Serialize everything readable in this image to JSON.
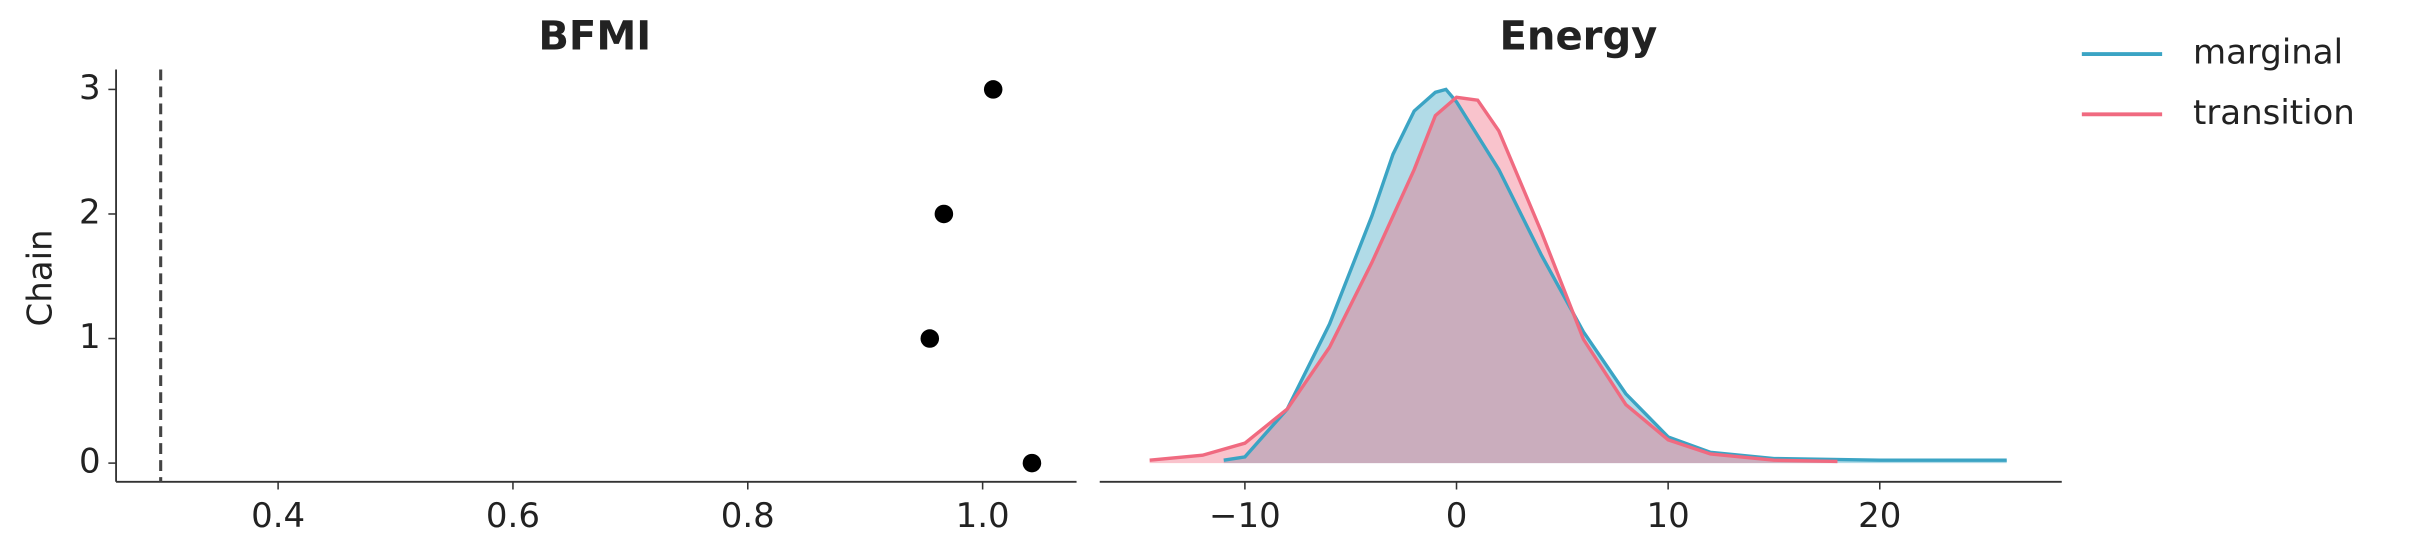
{
  "chart_data": [
    {
      "type": "scatter",
      "title": "BFMI",
      "y_label": "Chain",
      "x": [
        1.042,
        0.955,
        0.967,
        1.009
      ],
      "values": [
        0,
        1,
        2,
        3
      ],
      "color": "#000000",
      "vline": 0.3,
      "vline_color": "#444444",
      "xlim": [
        0.262,
        1.08
      ],
      "ylim": [
        -0.15,
        3.16
      ],
      "xticks": [
        0.4,
        0.6,
        0.8,
        {
          "value": 1,
          "label": "1.0"
        }
      ],
      "yticks": [
        0,
        1,
        2,
        3
      ]
    },
    {
      "type": "density",
      "title": "Energy",
      "legend": "outside-upper-right",
      "series": [
        {
          "name": "marginal",
          "color": "#3ba4c4",
          "x": [
            -11,
            -10,
            -8,
            -6,
            -4,
            -3,
            -2,
            -1,
            -0.5,
            0,
            2,
            4,
            6,
            8,
            10,
            12,
            15,
            20,
            26
          ],
          "values": [
            0.0007,
            0.0015,
            0.013,
            0.0335,
            0.0595,
            0.0744,
            0.0848,
            0.0893,
            0.09,
            0.087,
            0.0707,
            0.0502,
            0.0316,
            0.0167,
            0.0063,
            0.0026,
            0.0011,
            0.0007,
            0.0007
          ]
        },
        {
          "name": "transition",
          "color": "#f06a80",
          "x": [
            -14.5,
            -12,
            -10,
            -8,
            -6,
            -4,
            -2,
            -1,
            0,
            1,
            2,
            4,
            6,
            8,
            10,
            12,
            15,
            18
          ],
          "values": [
            0.0007,
            0.0019,
            0.0048,
            0.013,
            0.0279,
            0.0483,
            0.0707,
            0.0837,
            0.0881,
            0.0874,
            0.08,
            0.0558,
            0.0298,
            0.0141,
            0.0056,
            0.0022,
            0.0007,
            0.0004
          ]
        }
      ],
      "xlim": [
        -16.86,
        28.6
      ],
      "ylim": [
        -0.0045,
        0.0948
      ],
      "xticks": [
        {
          "value": -10,
          "label": "−10"
        },
        0,
        10,
        20
      ]
    }
  ]
}
